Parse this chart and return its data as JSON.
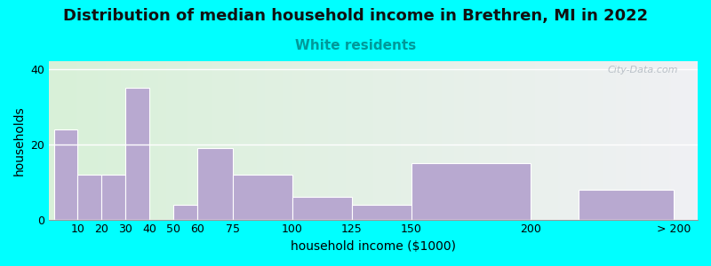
{
  "title": "Distribution of median household income in Brethren, MI in 2022",
  "subtitle": "White residents",
  "xlabel": "household income ($1000)",
  "ylabel": "households",
  "background_outer": "#00FFFF",
  "bar_color": "#b8a9d0",
  "bar_edgecolor": "#ffffff",
  "categories": [
    "10",
    "20",
    "30",
    "40",
    "50",
    "60",
    "75",
    "100",
    "125",
    "150",
    "200",
    "> 200"
  ],
  "values": [
    24,
    12,
    12,
    35,
    0,
    4,
    19,
    12,
    6,
    4,
    15,
    8
  ],
  "bar_lefts": [
    0,
    10,
    20,
    30,
    40,
    50,
    60,
    75,
    100,
    125,
    150,
    220
  ],
  "bar_widths": [
    10,
    10,
    10,
    10,
    10,
    10,
    15,
    25,
    25,
    25,
    50,
    40
  ],
  "tick_positions": [
    10,
    20,
    30,
    40,
    50,
    60,
    75,
    100,
    125,
    150,
    200,
    260
  ],
  "xlim": [
    -2,
    270
  ],
  "ylim": [
    0,
    42
  ],
  "yticks": [
    0,
    20,
    40
  ],
  "title_fontsize": 13,
  "subtitle_fontsize": 11,
  "subtitle_color": "#009999",
  "axis_label_fontsize": 10,
  "tick_fontsize": 9,
  "watermark": "City-Data.com"
}
